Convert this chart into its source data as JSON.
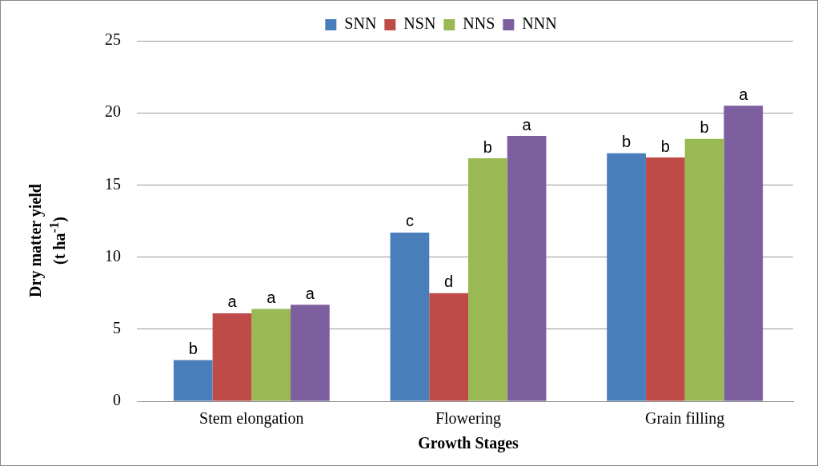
{
  "chart_data": {
    "type": "bar",
    "xlabel": "Growth Stages",
    "ylabel": "Dry matter yield (t ha$^{-1}$)",
    "categories": [
      "Stem elongation",
      "Flowering",
      "Grain filling"
    ],
    "series": [
      {
        "name": "SNN",
        "color": "#4a7ebb",
        "values": [
          2.85,
          11.7,
          17.2
        ],
        "value_labels": [
          "b",
          "c",
          "b"
        ]
      },
      {
        "name": "NSN",
        "color": "#be4b48",
        "values": [
          6.1,
          7.5,
          16.9
        ],
        "value_labels": [
          "a",
          "d",
          "b"
        ]
      },
      {
        "name": "NNS",
        "color": "#98b954",
        "values": [
          6.4,
          16.85,
          18.2
        ],
        "value_labels": [
          "a",
          "b",
          "b"
        ]
      },
      {
        "name": "NNN",
        "color": "#7d5fa0",
        "values": [
          6.7,
          18.4,
          20.5
        ],
        "value_labels": [
          "a",
          "a",
          "a"
        ]
      }
    ],
    "ylim": [
      0,
      25
    ],
    "yticks": [
      0,
      5,
      10,
      15,
      20,
      25
    ],
    "grid": "y",
    "legend": "top"
  }
}
